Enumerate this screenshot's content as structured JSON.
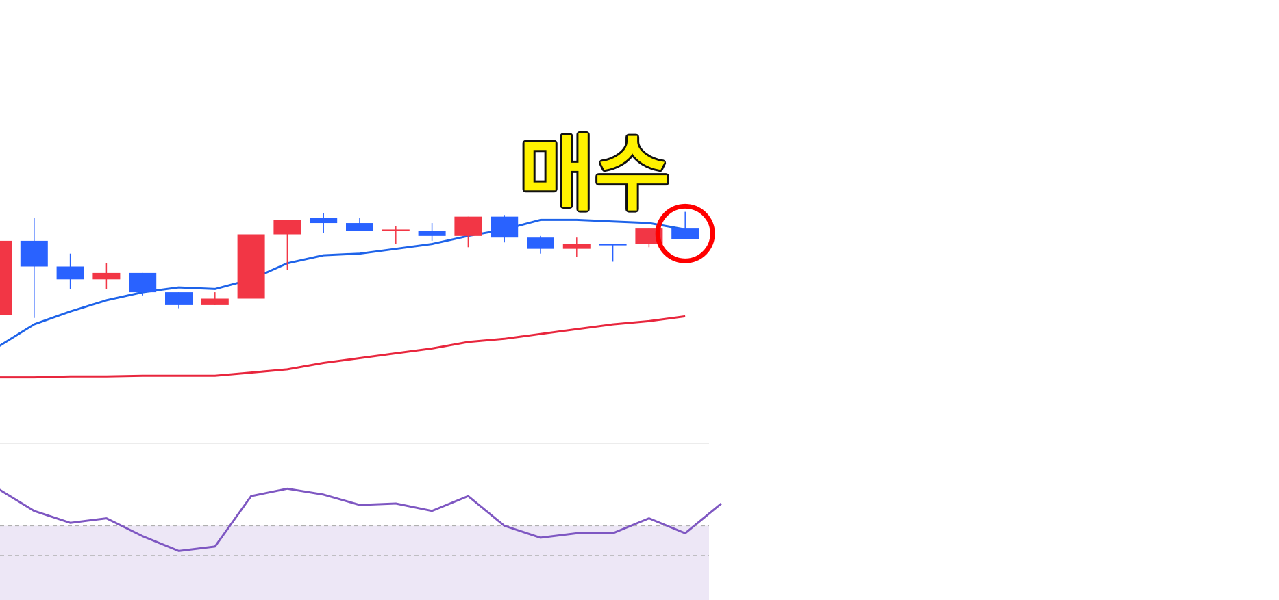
{
  "colors": {
    "up_candle": "#f23645",
    "down_candle": "#2962ff",
    "ma_short": "#1e63e9",
    "ma_long": "#e8263d",
    "oscillator": "#7e57c2",
    "oscillator_band": "#ede7f6",
    "oscillator_dashed": "#b0b0b0",
    "separator": "#e6e6e6",
    "annotation_fill": "#fff200",
    "annotation_stroke": "#111111",
    "highlight_circle": "#ff0000"
  },
  "annotation": {
    "label": "매수",
    "target_candle_index": 19
  },
  "chart_data": [
    {
      "type": "candlestick",
      "title": "",
      "xlabel": "",
      "ylabel": "",
      "ylim": [
        0,
        100
      ],
      "grid": false,
      "legend": "none",
      "candles": [
        {
          "i": 0,
          "open": 40,
          "close": 63,
          "high": 63,
          "low": 40,
          "color": "up"
        },
        {
          "i": 1,
          "open": 63,
          "close": 55,
          "high": 70,
          "low": 39,
          "color": "down"
        },
        {
          "i": 2,
          "open": 55,
          "close": 51,
          "high": 59,
          "low": 48,
          "color": "down"
        },
        {
          "i": 3,
          "open": 51,
          "close": 53,
          "high": 56,
          "low": 48,
          "color": "up"
        },
        {
          "i": 4,
          "open": 53,
          "close": 47,
          "high": 53,
          "low": 46,
          "color": "down"
        },
        {
          "i": 5,
          "open": 47,
          "close": 43,
          "high": 47,
          "low": 42,
          "color": "down"
        },
        {
          "i": 6,
          "open": 43,
          "close": 45,
          "high": 47,
          "low": 43,
          "color": "up"
        },
        {
          "i": 7,
          "open": 45,
          "close": 65,
          "high": 65,
          "low": 45,
          "color": "up"
        },
        {
          "i": 8,
          "open": 65,
          "close": 69.5,
          "high": 69.5,
          "low": 54,
          "color": "up"
        },
        {
          "i": 9,
          "open": 70,
          "close": 68.5,
          "high": 71.5,
          "low": 65.5,
          "color": "down"
        },
        {
          "i": 10,
          "open": 68.5,
          "close": 66,
          "high": 70,
          "low": 66,
          "color": "down"
        },
        {
          "i": 11,
          "open": 66,
          "close": 66.5,
          "high": 67.5,
          "low": 62,
          "color": "up"
        },
        {
          "i": 12,
          "open": 66,
          "close": 64.5,
          "high": 68.5,
          "low": 63,
          "color": "down"
        },
        {
          "i": 13,
          "open": 64.5,
          "close": 70.5,
          "high": 70.5,
          "low": 61,
          "color": "up"
        },
        {
          "i": 14,
          "open": 70.5,
          "close": 64,
          "high": 71,
          "low": 62.5,
          "color": "down"
        },
        {
          "i": 15,
          "open": 64,
          "close": 60.5,
          "high": 64.5,
          "low": 59,
          "color": "down"
        },
        {
          "i": 16,
          "open": 60.5,
          "close": 62,
          "high": 64,
          "low": 58,
          "color": "up"
        },
        {
          "i": 17,
          "open": 62,
          "close": 62,
          "high": 62,
          "low": 56.5,
          "color": "down"
        },
        {
          "i": 18,
          "open": 62,
          "close": 67,
          "high": 67,
          "low": 61,
          "color": "up"
        },
        {
          "i": 19,
          "open": 67,
          "close": 63.5,
          "high": 72,
          "low": 63.5,
          "color": "down"
        }
      ],
      "ma_short": [
        30,
        37,
        41,
        44.5,
        47,
        48.5,
        48,
        51,
        56,
        58.5,
        59,
        60.5,
        62,
        64.5,
        66.5,
        69.5,
        69.5,
        69,
        68.5,
        66.5
      ],
      "ma_long": [
        20.5,
        20.5,
        20.8,
        20.8,
        21,
        21,
        21,
        22,
        23,
        25,
        26.5,
        28,
        29.5,
        31.5,
        32.5,
        34,
        35.5,
        37,
        38,
        39.5
      ]
    },
    {
      "type": "line",
      "title": "",
      "xlabel": "",
      "ylabel": "",
      "ylim": [
        0,
        100
      ],
      "grid": false,
      "legend": "none",
      "reference_lines": [
        50,
        30
      ],
      "shaded_band": "below-50",
      "values": [
        75,
        60,
        52,
        55,
        43,
        33,
        36,
        70,
        75,
        71,
        64,
        65,
        60,
        70,
        50,
        42,
        45,
        45,
        55,
        45,
        65
      ]
    }
  ]
}
